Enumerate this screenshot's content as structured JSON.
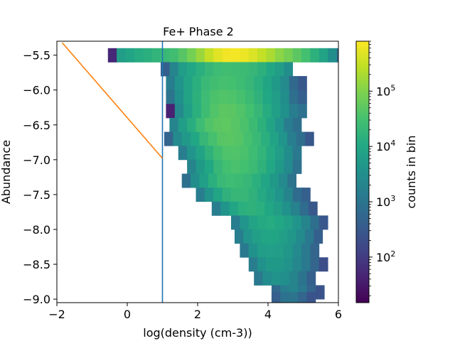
{
  "chart_data": {
    "type": "heatmap",
    "title": "Fe+ Phase 2",
    "xlabel": "log(density (cm-3))",
    "ylabel": "Abundance",
    "xlim": [
      -2,
      6
    ],
    "ylim": [
      -9.05,
      -5.3
    ],
    "x_ticks": [
      -2,
      0,
      2,
      4,
      6
    ],
    "x_tick_labels": [
      "−2",
      "0",
      "2",
      "4",
      "6"
    ],
    "y_ticks": [
      -5.5,
      -6.0,
      -6.5,
      -7.0,
      -7.5,
      -8.0,
      -8.5,
      -9.0
    ],
    "y_tick_labels": [
      "−5.5",
      "−6.0",
      "−6.5",
      "−7.0",
      "−7.5",
      "−8.0",
      "−8.5",
      "−9.0"
    ],
    "grid": false,
    "colormap": "viridis",
    "color_scale": "log",
    "colorbar": {
      "label": "counts in bin",
      "range": [
        15,
        800000
      ],
      "tick_labels": [
        "10",
        "10",
        "10",
        "10"
      ],
      "tick_exponents": [
        "2",
        "3",
        "4",
        "5"
      ],
      "tick_values": [
        100,
        1000,
        10000,
        100000
      ]
    },
    "vertical_line": {
      "x": 1.0,
      "color": "#1f77b4"
    },
    "orange_line": {
      "x": [
        -1.85,
        1.0
      ],
      "y": [
        -5.32,
        -6.98
      ],
      "color": "#ff7f0e"
    },
    "bin_size": {
      "dx": 0.25,
      "dy": 0.2
    },
    "rows": [
      {
        "y": -5.5,
        "x0": -0.55,
        "counts": [
          50,
          6000,
          9000,
          12000,
          14000,
          18000,
          22000,
          28000,
          45000,
          80000,
          150000,
          300000,
          500000,
          650000,
          700000,
          600000,
          450000,
          300000,
          200000,
          120000,
          80000,
          50000,
          30000,
          15000,
          8000,
          3000,
          800,
          60
        ]
      },
      {
        "y": -5.7,
        "x0": 0.95,
        "counts": [
          400,
          2000,
          6000,
          10000,
          14000,
          20000,
          25000,
          28000,
          27000,
          24000,
          20000,
          15000,
          10000,
          6000,
          3000
        ]
      },
      {
        "y": -5.9,
        "x0": 1.1,
        "counts": [
          1500,
          4000,
          8000,
          14000,
          22000,
          28000,
          32000,
          30000,
          26000,
          20000,
          14000,
          9000,
          5000,
          2500,
          600,
          300
        ]
      },
      {
        "y": -6.1,
        "x0": 1.1,
        "counts": [
          1000,
          3500,
          8000,
          15000,
          25000,
          35000,
          40000,
          38000,
          32000,
          24000,
          16000,
          10000,
          6000,
          3000,
          800,
          400
        ]
      },
      {
        "y": -6.3,
        "x0": 1.1,
        "counts": [
          40,
          2500,
          7000,
          14000,
          26000,
          40000,
          50000,
          48000,
          40000,
          30000,
          20000,
          12000,
          7000,
          3500,
          1500,
          900
        ]
      },
      {
        "y": -6.5,
        "x0": 1.2,
        "counts": [
          2000,
          6000,
          13000,
          25000,
          40000,
          50000,
          52000,
          45000,
          35000,
          24000,
          15000,
          8000,
          4000,
          1500,
          800
        ]
      },
      {
        "y": -6.7,
        "x0": 1.05,
        "counts": [
          500,
          2500,
          5000,
          10000,
          20000,
          32000,
          45000,
          48000,
          42000,
          32000,
          22000,
          14000,
          8000,
          4000,
          1500,
          800,
          300
        ]
      },
      {
        "y": -6.9,
        "x0": 1.45,
        "counts": [
          1500,
          4000,
          8000,
          16000,
          28000,
          38000,
          40000,
          34000,
          26000,
          18000,
          11000,
          6000,
          3000,
          1200
        ]
      },
      {
        "y": -7.1,
        "x0": 1.7,
        "counts": [
          2000,
          5000,
          10000,
          20000,
          30000,
          34000,
          30000,
          24000,
          16000,
          10000,
          5000,
          2500,
          900
        ]
      },
      {
        "y": -7.3,
        "x0": 1.55,
        "counts": [
          800,
          3000,
          7000,
          14000,
          22000,
          26000,
          24000,
          20000,
          14000,
          9000,
          5000,
          2500,
          1000
        ]
      },
      {
        "y": -7.5,
        "x0": 1.95,
        "counts": [
          1500,
          4000,
          9000,
          16000,
          20000,
          20000,
          16000,
          11000,
          7000,
          4000,
          2000,
          700,
          400
        ]
      },
      {
        "y": -7.7,
        "x0": 2.4,
        "counts": [
          1500,
          4000,
          9000,
          14000,
          16000,
          14000,
          10000,
          6500,
          3500,
          1800,
          700,
          300
        ]
      },
      {
        "y": -7.9,
        "x0": 2.95,
        "counts": [
          1500,
          4000,
          8000,
          11000,
          12000,
          10000,
          7000,
          4000,
          2000,
          800,
          300
        ]
      },
      {
        "y": -8.1,
        "x0": 3.05,
        "counts": [
          1500,
          4000,
          7000,
          9000,
          9000,
          7000,
          4500,
          2500,
          1200,
          400
        ]
      },
      {
        "y": -8.3,
        "x0": 3.2,
        "counts": [
          1200,
          3500,
          6000,
          7000,
          6000,
          4500,
          2500,
          1200,
          500
        ]
      },
      {
        "y": -8.5,
        "x0": 3.45,
        "counts": [
          1500,
          3500,
          5000,
          5000,
          3800,
          2200,
          1200,
          500,
          200
        ]
      },
      {
        "y": -8.7,
        "x0": 3.6,
        "counts": [
          1200,
          2800,
          3800,
          3200,
          2000,
          1000,
          400
        ]
      },
      {
        "y": -8.9,
        "x0": 4.1,
        "counts": [
          600,
          1500,
          2000,
          1200,
          500,
          250
        ]
      },
      {
        "y": -9.0,
        "x0": 4.1,
        "counts": [
          400,
          900,
          1000,
          500,
          250
        ]
      }
    ]
  }
}
